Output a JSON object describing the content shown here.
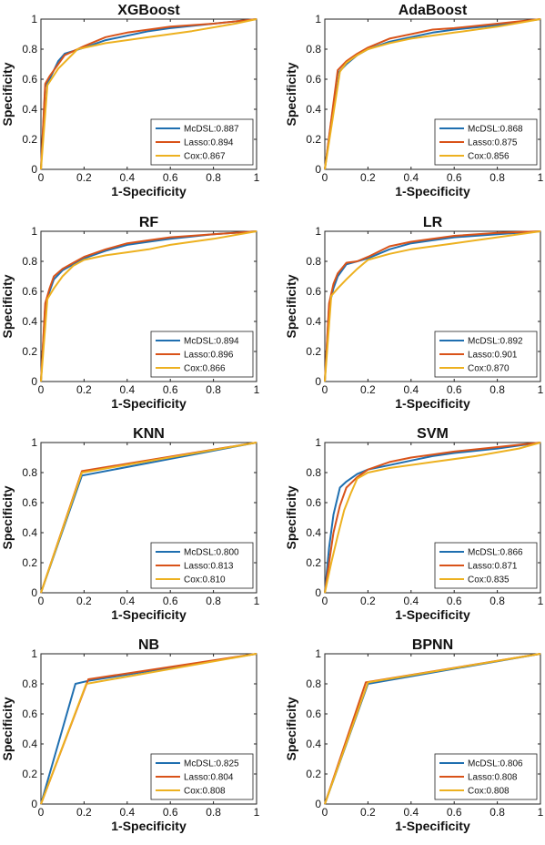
{
  "colors": {
    "McDSL": "#1f6fb0",
    "Lasso": "#d95319",
    "Cox": "#edb120",
    "axis": "#222222",
    "background": "#ffffff"
  },
  "chart_data": [
    {
      "type": "line",
      "title": "XGBoost",
      "xlabel": "1-Specificity",
      "ylabel": "Specificity",
      "xlim": [
        0,
        1
      ],
      "ylim": [
        0,
        1
      ],
      "xticks": [
        "0",
        "0.2",
        "0.4",
        "0.6",
        "0.8",
        "1"
      ],
      "yticks": [
        "0",
        "0.2",
        "0.4",
        "0.6",
        "0.8",
        "1"
      ],
      "grid": false,
      "legend_position": "bottom-right",
      "series": [
        {
          "name": "McDSL:0.887",
          "key": "McDSL",
          "x": [
            0,
            0.02,
            0.04,
            0.08,
            0.11,
            0.2,
            0.3,
            0.4,
            0.5,
            0.6,
            0.8,
            1
          ],
          "y": [
            0,
            0.55,
            0.6,
            0.72,
            0.77,
            0.81,
            0.86,
            0.89,
            0.92,
            0.94,
            0.97,
            1
          ]
        },
        {
          "name": "Lasso:0.894",
          "key": "Lasso",
          "x": [
            0,
            0.02,
            0.04,
            0.08,
            0.11,
            0.2,
            0.3,
            0.4,
            0.5,
            0.6,
            0.8,
            1
          ],
          "y": [
            0,
            0.57,
            0.62,
            0.7,
            0.76,
            0.82,
            0.88,
            0.91,
            0.93,
            0.95,
            0.97,
            1
          ]
        },
        {
          "name": "Cox:0.867",
          "key": "Cox",
          "x": [
            0,
            0.03,
            0.08,
            0.17,
            0.3,
            0.5,
            0.7,
            0.9,
            1
          ],
          "y": [
            0,
            0.56,
            0.67,
            0.8,
            0.84,
            0.88,
            0.92,
            0.97,
            1
          ]
        }
      ]
    },
    {
      "type": "line",
      "title": "AdaBoost",
      "xlabel": "1-Specificity",
      "ylabel": "Specificity",
      "xlim": [
        0,
        1
      ],
      "ylim": [
        0,
        1
      ],
      "xticks": [
        "0",
        "0.2",
        "0.4",
        "0.6",
        "0.8",
        "1"
      ],
      "yticks": [
        "0",
        "0.2",
        "0.4",
        "0.6",
        "0.8",
        "1"
      ],
      "grid": false,
      "legend_position": "bottom-right",
      "series": [
        {
          "name": "McDSL:0.868",
          "key": "McDSL",
          "x": [
            0,
            0.06,
            0.1,
            0.15,
            0.2,
            0.3,
            0.4,
            0.5,
            0.6,
            0.8,
            1
          ],
          "y": [
            0,
            0.64,
            0.7,
            0.76,
            0.8,
            0.85,
            0.88,
            0.91,
            0.93,
            0.96,
            1
          ]
        },
        {
          "name": "Lasso:0.875",
          "key": "Lasso",
          "x": [
            0,
            0.06,
            0.1,
            0.15,
            0.2,
            0.3,
            0.4,
            0.5,
            0.6,
            0.8,
            1
          ],
          "y": [
            0,
            0.66,
            0.72,
            0.77,
            0.81,
            0.87,
            0.9,
            0.93,
            0.94,
            0.97,
            1
          ]
        },
        {
          "name": "Cox:0.856",
          "key": "Cox",
          "x": [
            0,
            0.07,
            0.1,
            0.15,
            0.2,
            0.3,
            0.4,
            0.6,
            0.8,
            1
          ],
          "y": [
            0,
            0.65,
            0.71,
            0.76,
            0.8,
            0.84,
            0.87,
            0.91,
            0.95,
            1
          ]
        }
      ]
    },
    {
      "type": "line",
      "title": "RF",
      "xlabel": "1-Specificity",
      "ylabel": "Specificity",
      "xlim": [
        0,
        1
      ],
      "ylim": [
        0,
        1
      ],
      "xticks": [
        "0",
        "0.2",
        "0.4",
        "0.6",
        "0.8",
        "1"
      ],
      "yticks": [
        "0",
        "0.2",
        "0.4",
        "0.6",
        "0.8",
        "1"
      ],
      "grid": false,
      "legend_position": "bottom-right",
      "series": [
        {
          "name": "McDSL:0.894",
          "key": "McDSL",
          "x": [
            0,
            0.02,
            0.04,
            0.06,
            0.1,
            0.15,
            0.2,
            0.3,
            0.4,
            0.5,
            0.6,
            0.8,
            1
          ],
          "y": [
            0,
            0.5,
            0.6,
            0.68,
            0.74,
            0.78,
            0.82,
            0.87,
            0.91,
            0.93,
            0.95,
            0.98,
            1
          ]
        },
        {
          "name": "Lasso:0.896",
          "key": "Lasso",
          "x": [
            0,
            0.02,
            0.04,
            0.06,
            0.1,
            0.15,
            0.2,
            0.3,
            0.4,
            0.5,
            0.6,
            0.8,
            1
          ],
          "y": [
            0,
            0.52,
            0.62,
            0.7,
            0.75,
            0.79,
            0.83,
            0.88,
            0.92,
            0.94,
            0.96,
            0.98,
            1
          ]
        },
        {
          "name": "Cox:0.866",
          "key": "Cox",
          "x": [
            0,
            0.03,
            0.06,
            0.1,
            0.15,
            0.2,
            0.3,
            0.4,
            0.5,
            0.6,
            0.8,
            1
          ],
          "y": [
            0,
            0.55,
            0.62,
            0.7,
            0.77,
            0.81,
            0.84,
            0.86,
            0.88,
            0.91,
            0.95,
            1
          ]
        }
      ]
    },
    {
      "type": "line",
      "title": "LR",
      "xlabel": "1-Specificity",
      "ylabel": "Specificity",
      "xlim": [
        0,
        1
      ],
      "ylim": [
        0,
        1
      ],
      "xticks": [
        "0",
        "0.2",
        "0.4",
        "0.6",
        "0.8",
        "1"
      ],
      "yticks": [
        "0",
        "0.2",
        "0.4",
        "0.6",
        "0.8",
        "1"
      ],
      "grid": false,
      "legend_position": "bottom-right",
      "series": [
        {
          "name": "McDSL:0.892",
          "key": "McDSL",
          "x": [
            0,
            0.02,
            0.04,
            0.06,
            0.1,
            0.15,
            0.2,
            0.3,
            0.4,
            0.5,
            0.6,
            0.8,
            1
          ],
          "y": [
            0,
            0.5,
            0.62,
            0.7,
            0.78,
            0.8,
            0.82,
            0.88,
            0.92,
            0.94,
            0.96,
            0.98,
            1
          ]
        },
        {
          "name": "Lasso:0.901",
          "key": "Lasso",
          "x": [
            0,
            0.02,
            0.04,
            0.06,
            0.1,
            0.15,
            0.2,
            0.3,
            0.4,
            0.5,
            0.6,
            0.8,
            1
          ],
          "y": [
            0,
            0.52,
            0.65,
            0.72,
            0.79,
            0.8,
            0.83,
            0.9,
            0.93,
            0.95,
            0.97,
            0.99,
            1
          ]
        },
        {
          "name": "Cox:0.870",
          "key": "Cox",
          "x": [
            0,
            0.03,
            0.06,
            0.1,
            0.15,
            0.2,
            0.3,
            0.4,
            0.5,
            0.6,
            0.8,
            1
          ],
          "y": [
            0,
            0.57,
            0.62,
            0.68,
            0.75,
            0.81,
            0.85,
            0.88,
            0.9,
            0.92,
            0.96,
            1
          ]
        }
      ]
    },
    {
      "type": "line",
      "title": "KNN",
      "xlabel": "1-Specificity",
      "ylabel": "Specificity",
      "xlim": [
        0,
        1
      ],
      "ylim": [
        0,
        1
      ],
      "xticks": [
        "0",
        "0.2",
        "0.4",
        "0.6",
        "0.8",
        "1"
      ],
      "yticks": [
        "0",
        "0.2",
        "0.4",
        "0.6",
        "0.8",
        "1"
      ],
      "grid": false,
      "legend_position": "bottom-right",
      "series": [
        {
          "name": "McDSL:0.800",
          "key": "McDSL",
          "x": [
            0,
            0.19,
            1
          ],
          "y": [
            0,
            0.78,
            1
          ]
        },
        {
          "name": "Lasso:0.813",
          "key": "Lasso",
          "x": [
            0,
            0.19,
            1
          ],
          "y": [
            0,
            0.81,
            1
          ]
        },
        {
          "name": "Cox:0.810",
          "key": "Cox",
          "x": [
            0,
            0.19,
            1
          ],
          "y": [
            0,
            0.8,
            1
          ]
        }
      ]
    },
    {
      "type": "line",
      "title": "SVM",
      "xlabel": "1-Specificity",
      "ylabel": "Specificity",
      "xlim": [
        0,
        1
      ],
      "ylim": [
        0,
        1
      ],
      "xticks": [
        "0",
        "0.2",
        "0.4",
        "0.6",
        "0.8",
        "1"
      ],
      "yticks": [
        "0",
        "0.2",
        "0.4",
        "0.6",
        "0.8",
        "1"
      ],
      "grid": false,
      "legend_position": "bottom-right",
      "series": [
        {
          "name": "McDSL:0.866",
          "key": "McDSL",
          "x": [
            0,
            0.02,
            0.04,
            0.07,
            0.1,
            0.15,
            0.2,
            0.3,
            0.4,
            0.5,
            0.6,
            0.8,
            1
          ],
          "y": [
            0,
            0.3,
            0.52,
            0.7,
            0.74,
            0.79,
            0.82,
            0.85,
            0.88,
            0.91,
            0.93,
            0.96,
            1
          ]
        },
        {
          "name": "Lasso:0.871",
          "key": "Lasso",
          "x": [
            0,
            0.02,
            0.04,
            0.07,
            0.1,
            0.15,
            0.2,
            0.3,
            0.4,
            0.5,
            0.6,
            0.8,
            1
          ],
          "y": [
            0,
            0.2,
            0.4,
            0.58,
            0.7,
            0.77,
            0.82,
            0.87,
            0.9,
            0.92,
            0.94,
            0.97,
            1
          ]
        },
        {
          "name": "Cox:0.835",
          "key": "Cox",
          "x": [
            0,
            0.03,
            0.06,
            0.09,
            0.12,
            0.15,
            0.2,
            0.3,
            0.5,
            0.7,
            0.9,
            1
          ],
          "y": [
            0,
            0.2,
            0.38,
            0.55,
            0.66,
            0.76,
            0.8,
            0.83,
            0.87,
            0.91,
            0.96,
            1
          ]
        }
      ]
    },
    {
      "type": "line",
      "title": "NB",
      "xlabel": "1-Specificity",
      "ylabel": "Specificity",
      "xlim": [
        0,
        1
      ],
      "ylim": [
        0,
        1
      ],
      "xticks": [
        "0",
        "0.2",
        "0.4",
        "0.6",
        "0.8",
        "1"
      ],
      "yticks": [
        "0",
        "0.2",
        "0.4",
        "0.6",
        "0.8",
        "1"
      ],
      "grid": false,
      "legend_position": "bottom-right",
      "series": [
        {
          "name": "McDSL:0.825",
          "key": "McDSL",
          "x": [
            0,
            0.16,
            0.22,
            1
          ],
          "y": [
            0,
            0.8,
            0.82,
            1
          ]
        },
        {
          "name": "Lasso:0.804",
          "key": "Lasso",
          "x": [
            0,
            0.22,
            1
          ],
          "y": [
            0,
            0.83,
            1
          ]
        },
        {
          "name": "Cox:0.808",
          "key": "Cox",
          "x": [
            0,
            0.21,
            1
          ],
          "y": [
            0,
            0.8,
            1
          ]
        }
      ]
    },
    {
      "type": "line",
      "title": "BPNN",
      "xlabel": "1-Specificity",
      "ylabel": "Specificity",
      "xlim": [
        0,
        1
      ],
      "ylim": [
        0,
        1
      ],
      "xticks": [
        "0",
        "0.2",
        "0.4",
        "0.6",
        "0.8",
        "1"
      ],
      "yticks": [
        "0",
        "0.2",
        "0.4",
        "0.6",
        "0.8",
        "1"
      ],
      "grid": false,
      "legend_position": "bottom-right",
      "series": [
        {
          "name": "McDSL:0.806",
          "key": "McDSL",
          "x": [
            0,
            0.2,
            1
          ],
          "y": [
            0,
            0.8,
            1
          ]
        },
        {
          "name": "Lasso:0.808",
          "key": "Lasso",
          "x": [
            0,
            0.19,
            1
          ],
          "y": [
            0,
            0.81,
            1
          ]
        },
        {
          "name": "Cox:0.808",
          "key": "Cox",
          "x": [
            0,
            0.2,
            1
          ],
          "y": [
            0,
            0.81,
            1
          ]
        }
      ]
    }
  ]
}
